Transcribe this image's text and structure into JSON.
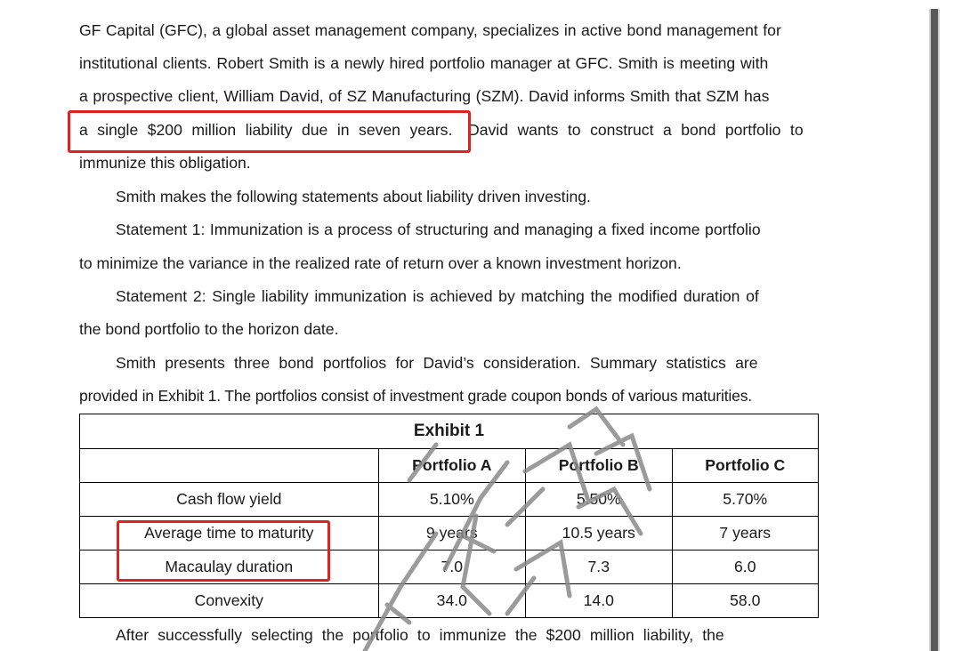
{
  "paragraphs": {
    "p1": [
      "GF Capital (GFC), a global asset management company, specializes in active bond management for",
      "institutional clients. Robert Smith is a newly hired portfolio manager at GFC. Smith is meeting with",
      "a prospective client, William David, of SZ Manufacturing (SZM). David informs Smith that SZM has",
      "a single $200 million liability due in seven years.",
      "David wants to construct a bond portfolio to",
      "immunize this obligation."
    ],
    "p2": "Smith makes the following statements about liability driven investing.",
    "p3": [
      "Statement 1: Immunization is a process of structuring and managing a fixed income portfolio",
      "to minimize the variance in the realized rate of return over a known investment horizon."
    ],
    "p4": [
      "Statement 2: Single liability immunization is achieved by matching the modified duration of",
      "the bond portfolio to the horizon date."
    ],
    "p5": [
      "Smith presents three bond portfolios for David’s consideration. Summary statistics are",
      "provided in Exhibit 1. The portfolios consist of investment grade coupon bonds of various maturities."
    ],
    "p6": "After successfully selecting the portfolio to immunize the $200 million liability, the"
  },
  "exhibit": {
    "title": "Exhibit 1",
    "headers": [
      "",
      "Portfolio A",
      "Portfolio B",
      "Portfolio C"
    ],
    "rows": [
      [
        "Cash flow yield",
        "5.10%",
        "5.50%",
        "5.70%"
      ],
      [
        "Average time to maturity",
        "9 years",
        "10.5 years",
        "7 years"
      ],
      [
        "Macaulay duration",
        "7.0",
        "7.3",
        "6.0"
      ],
      [
        "Convexity",
        "34.0",
        "14.0",
        "58.0"
      ]
    ]
  },
  "colors": {
    "highlight": "#e0211d",
    "watermark": "#8a8a8a"
  }
}
